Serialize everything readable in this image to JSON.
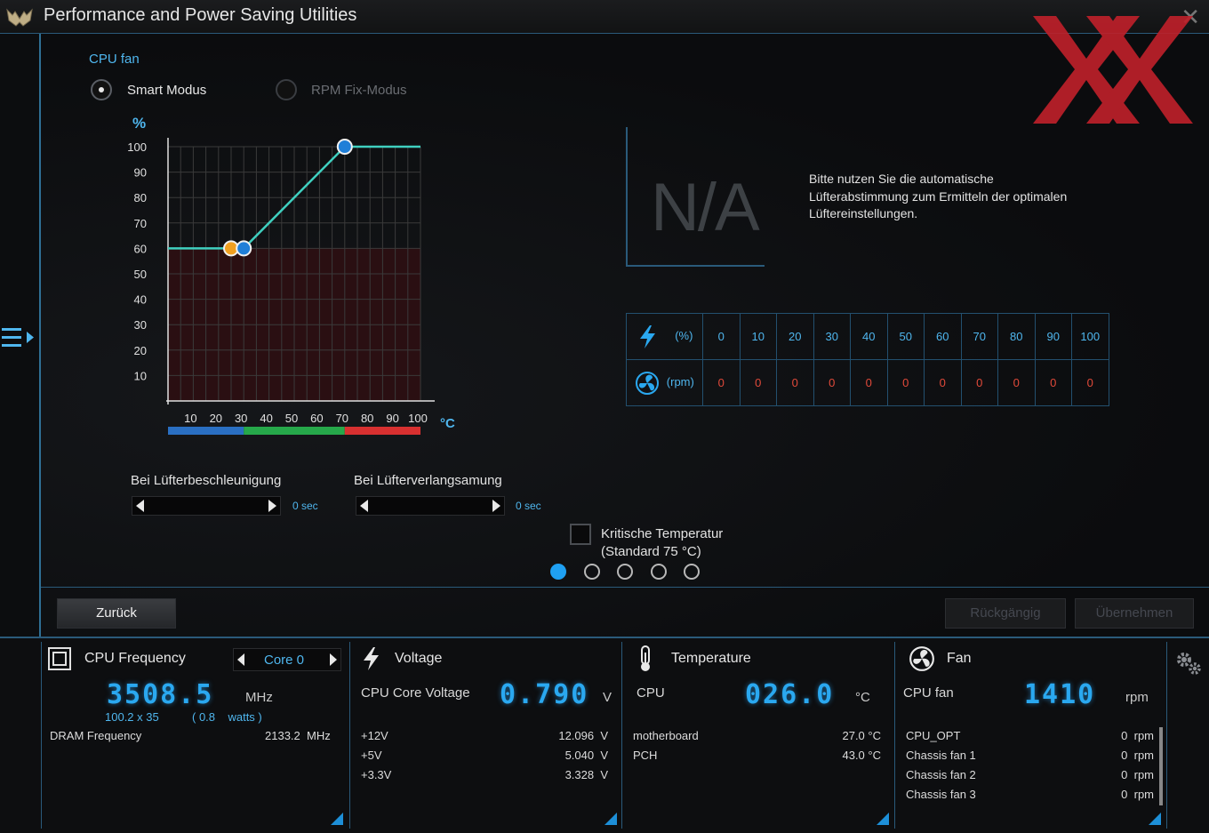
{
  "window": {
    "title": "Performance and Power Saving Utilities"
  },
  "fan_page": {
    "section_label": "CPU fan",
    "modes": [
      {
        "label": "Smart Modus",
        "selected": true
      },
      {
        "label": "RPM Fix-Modus",
        "selected": false
      }
    ],
    "na_text": "N/A",
    "info_text": "Bitte nutzen Sie die automatische Lüfterabstimmung zum Ermitteln der optimalen Lüftereinstellungen.",
    "table": {
      "pct_unit": "(%)",
      "rpm_unit": "(rpm)",
      "pct_values": [
        "0",
        "10",
        "20",
        "30",
        "40",
        "50",
        "60",
        "70",
        "80",
        "90",
        "100"
      ],
      "rpm_values": [
        "0",
        "0",
        "0",
        "0",
        "0",
        "0",
        "0",
        "0",
        "0",
        "0",
        "0"
      ]
    },
    "accel": {
      "label": "Bei Lüfterbeschleunigung",
      "value": "0 sec"
    },
    "decel": {
      "label": "Bei Lüfterverlangsamung",
      "value": "0 sec"
    },
    "critical": {
      "line1": "Kritische Temperatur",
      "line2": "(Standard 75 °C)",
      "checked": false
    },
    "pagination": {
      "count": 5,
      "active": 0
    },
    "buttons": {
      "back": "Zurück",
      "undo": "Rückgängig",
      "apply": "Übernehmen"
    }
  },
  "chart_data": {
    "type": "line",
    "ylabel": "%",
    "xlabel": "°C",
    "xlim": [
      0,
      100
    ],
    "ylim": [
      0,
      100
    ],
    "x_ticks": [
      "10",
      "20",
      "30",
      "40",
      "50",
      "60",
      "70",
      "80",
      "90",
      "100"
    ],
    "y_ticks": [
      "100",
      "90",
      "80",
      "70",
      "60",
      "50",
      "40",
      "30",
      "20",
      "10"
    ],
    "series": [
      {
        "points": [
          [
            0,
            60
          ],
          [
            25,
            60
          ],
          [
            30,
            60
          ],
          [
            70,
            100
          ],
          [
            100,
            100
          ]
        ]
      }
    ],
    "handles": [
      {
        "x": 25,
        "y": 60,
        "color": "#f0a020"
      },
      {
        "x": 30,
        "y": 60,
        "color": "#1f7fd8"
      },
      {
        "x": 70,
        "y": 100,
        "color": "#1f7fd8"
      }
    ],
    "zones": [
      {
        "from": 0,
        "to": 30,
        "color": "#2a6fc2"
      },
      {
        "from": 30,
        "to": 70,
        "color": "#26a84a"
      },
      {
        "from": 70,
        "to": 100,
        "color": "#d83030"
      }
    ],
    "colors": {
      "line": "#3fd0c0",
      "grid": "#3a3a3a",
      "fill": "#2a0f12"
    }
  },
  "status": {
    "cpu": {
      "title": "CPU Frequency",
      "core_select": "Core 0",
      "frequency": "3508.5",
      "freq_unit": "MHz",
      "ratio": "100.2  x  35",
      "power": "( 0.8    watts )",
      "dram_label": "DRAM Frequency",
      "dram_value": "2133.2  MHz"
    },
    "voltage": {
      "title": "Voltage",
      "main_label": "CPU Core Voltage",
      "main_value": "0.790",
      "main_unit": "V",
      "rows": [
        {
          "label": "+12V",
          "value": "12.096  V"
        },
        {
          "label": "+5V",
          "value": "5.040  V"
        },
        {
          "label": "+3.3V",
          "value": "3.328  V"
        }
      ]
    },
    "temperature": {
      "title": "Temperature",
      "main_label": "CPU",
      "main_value": "026.0",
      "main_unit": "°C",
      "rows": [
        {
          "label": "motherboard",
          "value": "27.0 °C"
        },
        {
          "label": "PCH",
          "value": "43.0 °C"
        }
      ]
    },
    "fan": {
      "title": "Fan",
      "main_label": "CPU fan",
      "main_value": "1410",
      "main_unit": "rpm",
      "rows": [
        {
          "label": "CPU_OPT",
          "value": "0  rpm"
        },
        {
          "label": "Chassis fan 1",
          "value": "0  rpm"
        },
        {
          "label": "Chassis fan 2",
          "value": "0  rpm"
        },
        {
          "label": "Chassis fan 3",
          "value": "0  rpm"
        }
      ]
    }
  }
}
